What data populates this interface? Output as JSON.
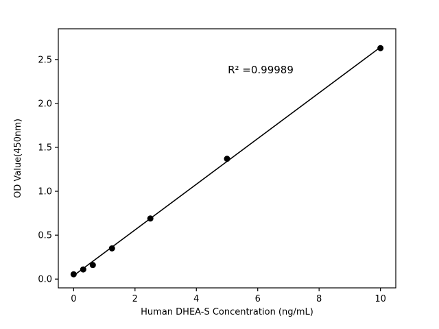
{
  "chart_data": {
    "type": "scatter",
    "title": "",
    "xlabel": "Human DHEA-S Concentration (ng/mL)",
    "ylabel": "OD Value(450nm)",
    "annotation": "R² =0.99989",
    "x": [
      0,
      0.3125,
      0.625,
      1.25,
      2.5,
      5,
      10
    ],
    "y": [
      0.055,
      0.11,
      0.16,
      0.35,
      0.69,
      1.37,
      2.63
    ],
    "trendline": {
      "x": [
        0,
        10
      ],
      "y": [
        0.04,
        2.64
      ]
    },
    "xticks": [
      0,
      2,
      4,
      6,
      8,
      10
    ],
    "xtick_labels": [
      "0",
      "2",
      "4",
      "6",
      "8",
      "10"
    ],
    "yticks": [
      0.0,
      0.5,
      1.0,
      1.5,
      2.0,
      2.5
    ],
    "ytick_labels": [
      "0.0",
      "0.5",
      "1.0",
      "1.5",
      "2.0",
      "2.5"
    ],
    "xlim": [
      -0.5,
      10.5
    ],
    "ylim": [
      -0.1,
      2.85
    ],
    "grid": false,
    "legend": null,
    "marker_color": "#000000",
    "line_color": "#000000",
    "background_color": "#ffffff"
  }
}
